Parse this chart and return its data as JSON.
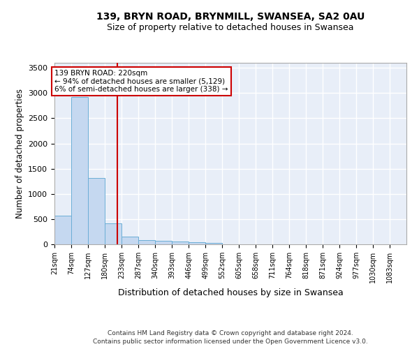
{
  "title1": "139, BRYN ROAD, BRYNMILL, SWANSEA, SA2 0AU",
  "title2": "Size of property relative to detached houses in Swansea",
  "xlabel": "Distribution of detached houses by size in Swansea",
  "ylabel": "Number of detached properties",
  "footer1": "Contains HM Land Registry data © Crown copyright and database right 2024.",
  "footer2": "Contains public sector information licensed under the Open Government Licence v3.0.",
  "annotation_line1": "139 BRYN ROAD: 220sqm",
  "annotation_line2": "← 94% of detached houses are smaller (5,129)",
  "annotation_line3": "6% of semi-detached houses are larger (338) →",
  "bar_color": "#c5d8f0",
  "bar_edge_color": "#6baed6",
  "ref_line_color": "#cc0000",
  "ref_line_x": 220,
  "categories": [
    "21sqm",
    "74sqm",
    "127sqm",
    "180sqm",
    "233sqm",
    "287sqm",
    "340sqm",
    "393sqm",
    "446sqm",
    "499sqm",
    "552sqm",
    "605sqm",
    "658sqm",
    "711sqm",
    "764sqm",
    "818sqm",
    "871sqm",
    "924sqm",
    "977sqm",
    "1030sqm",
    "1083sqm"
  ],
  "bin_edges": [
    21,
    74,
    127,
    180,
    233,
    287,
    340,
    393,
    446,
    499,
    552,
    605,
    658,
    711,
    764,
    818,
    871,
    924,
    977,
    1030,
    1083
  ],
  "bin_width": 53,
  "values": [
    570,
    2920,
    1320,
    415,
    155,
    85,
    65,
    55,
    45,
    30,
    0,
    0,
    0,
    0,
    0,
    0,
    0,
    0,
    0,
    0,
    0
  ],
  "ylim": [
    0,
    3600
  ],
  "yticks": [
    0,
    500,
    1000,
    1500,
    2000,
    2500,
    3000,
    3500
  ],
  "bg_color": "#e8eef8",
  "grid_color": "#ffffff",
  "text_color": "#000000",
  "fig_width": 6.0,
  "fig_height": 5.0,
  "dpi": 100
}
